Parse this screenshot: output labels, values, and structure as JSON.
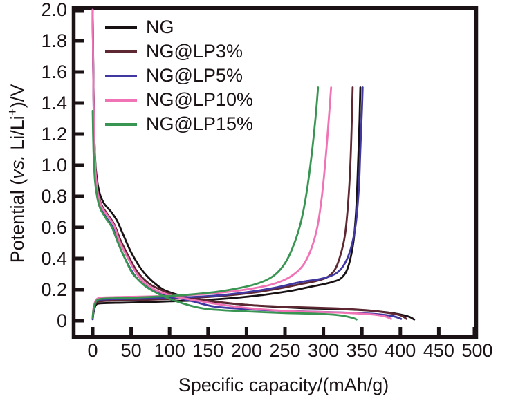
{
  "chart_data": {
    "type": "line",
    "title": "",
    "xlabel": "Specific capacity/(mAh/g)",
    "ylabel": "Potential (vs. Li/Li+)/V",
    "ylabel_parts": {
      "p1": "Potential (",
      "p2": "vs.",
      "p3": " Li/Li",
      "sup": "+",
      "p4": ")/V"
    },
    "xlim": [
      0,
      500
    ],
    "ylim": [
      0,
      2.0
    ],
    "grid": false,
    "legend_position": "top-left-inside",
    "axis_color": "#1a1215",
    "background_color": "#ffffff",
    "x_ticks": [
      0,
      50,
      100,
      150,
      200,
      250,
      300,
      350,
      400,
      450,
      500
    ],
    "x_tick_labels": [
      "0",
      "50",
      "100",
      "150",
      "200",
      "250",
      "300",
      "350",
      "400",
      "450",
      "500"
    ],
    "y_ticks": [
      0,
      0.2,
      0.4,
      0.6,
      0.8,
      1.0,
      1.2,
      1.4,
      1.6,
      1.8,
      2.0
    ],
    "y_tick_labels": [
      "0",
      "0.2",
      "0.4",
      "0.6",
      "0.8",
      "1.0",
      "1.2",
      "1.4",
      "1.6",
      "1.8",
      "2.0"
    ],
    "series": [
      {
        "name": "NG",
        "color": "#181114",
        "discharge_capacity_mAh_g": 418,
        "charge_capacity_mAh_g": 348,
        "discharge": [
          [
            0,
            2.0
          ],
          [
            1,
            1.5
          ],
          [
            2,
            1.2
          ],
          [
            4,
            0.98
          ],
          [
            8,
            0.84
          ],
          [
            14,
            0.76
          ],
          [
            24,
            0.7
          ],
          [
            32,
            0.64
          ],
          [
            40,
            0.55
          ],
          [
            50,
            0.44
          ],
          [
            62,
            0.34
          ],
          [
            72,
            0.28
          ],
          [
            82,
            0.235
          ],
          [
            92,
            0.2
          ],
          [
            105,
            0.175
          ],
          [
            120,
            0.155
          ],
          [
            140,
            0.135
          ],
          [
            170,
            0.115
          ],
          [
            220,
            0.095
          ],
          [
            270,
            0.082
          ],
          [
            320,
            0.075
          ],
          [
            360,
            0.065
          ],
          [
            385,
            0.052
          ],
          [
            400,
            0.04
          ],
          [
            412,
            0.025
          ],
          [
            418,
            0.008
          ]
        ],
        "charge": [
          [
            0,
            0.01
          ],
          [
            1,
            0.05
          ],
          [
            4,
            0.1
          ],
          [
            10,
            0.112
          ],
          [
            30,
            0.115
          ],
          [
            60,
            0.118
          ],
          [
            100,
            0.125
          ],
          [
            140,
            0.132
          ],
          [
            180,
            0.145
          ],
          [
            220,
            0.165
          ],
          [
            255,
            0.19
          ],
          [
            280,
            0.215
          ],
          [
            300,
            0.235
          ],
          [
            312,
            0.25
          ],
          [
            322,
            0.27
          ],
          [
            330,
            0.32
          ],
          [
            336,
            0.42
          ],
          [
            340,
            0.55
          ],
          [
            343,
            0.75
          ],
          [
            345,
            1.0
          ],
          [
            347,
            1.3
          ],
          [
            348,
            1.5
          ]
        ]
      },
      {
        "name": "NG@LP3%",
        "color": "#5e2832",
        "discharge_capacity_mAh_g": 408,
        "charge_capacity_mAh_g": 338,
        "discharge": [
          [
            0,
            2.0
          ],
          [
            1,
            1.5
          ],
          [
            2,
            1.2
          ],
          [
            4,
            0.95
          ],
          [
            7,
            0.82
          ],
          [
            12,
            0.74
          ],
          [
            20,
            0.68
          ],
          [
            28,
            0.62
          ],
          [
            36,
            0.52
          ],
          [
            46,
            0.42
          ],
          [
            56,
            0.33
          ],
          [
            66,
            0.27
          ],
          [
            76,
            0.23
          ],
          [
            88,
            0.2
          ],
          [
            100,
            0.175
          ],
          [
            115,
            0.155
          ],
          [
            135,
            0.14
          ],
          [
            165,
            0.12
          ],
          [
            205,
            0.1
          ],
          [
            260,
            0.088
          ],
          [
            315,
            0.08
          ],
          [
            355,
            0.068
          ],
          [
            385,
            0.05
          ],
          [
            400,
            0.035
          ],
          [
            408,
            0.012
          ]
        ],
        "charge": [
          [
            0,
            0.01
          ],
          [
            1,
            0.06
          ],
          [
            4,
            0.11
          ],
          [
            10,
            0.125
          ],
          [
            30,
            0.13
          ],
          [
            60,
            0.133
          ],
          [
            100,
            0.14
          ],
          [
            140,
            0.15
          ],
          [
            180,
            0.165
          ],
          [
            215,
            0.185
          ],
          [
            245,
            0.21
          ],
          [
            270,
            0.235
          ],
          [
            290,
            0.255
          ],
          [
            305,
            0.28
          ],
          [
            315,
            0.33
          ],
          [
            322,
            0.42
          ],
          [
            328,
            0.55
          ],
          [
            332,
            0.75
          ],
          [
            335,
            1.0
          ],
          [
            337,
            1.3
          ],
          [
            338,
            1.5
          ]
        ]
      },
      {
        "name": "NG@LP5%",
        "color": "#4038a0",
        "discharge_capacity_mAh_g": 401,
        "charge_capacity_mAh_g": 351,
        "discharge": [
          [
            0,
            2.0
          ],
          [
            1,
            1.45
          ],
          [
            2,
            1.15
          ],
          [
            4,
            0.92
          ],
          [
            7,
            0.8
          ],
          [
            11,
            0.72
          ],
          [
            18,
            0.66
          ],
          [
            26,
            0.6
          ],
          [
            33,
            0.5
          ],
          [
            42,
            0.4
          ],
          [
            52,
            0.31
          ],
          [
            60,
            0.26
          ],
          [
            70,
            0.22
          ],
          [
            80,
            0.19
          ],
          [
            92,
            0.17
          ],
          [
            108,
            0.15
          ],
          [
            130,
            0.125
          ],
          [
            160,
            0.09
          ],
          [
            210,
            0.072
          ],
          [
            260,
            0.062
          ],
          [
            310,
            0.055
          ],
          [
            350,
            0.048
          ],
          [
            375,
            0.04
          ],
          [
            392,
            0.028
          ],
          [
            401,
            0.012
          ]
        ],
        "charge": [
          [
            0,
            0.01
          ],
          [
            1,
            0.06
          ],
          [
            4,
            0.12
          ],
          [
            10,
            0.135
          ],
          [
            30,
            0.14
          ],
          [
            60,
            0.142
          ],
          [
            100,
            0.148
          ],
          [
            140,
            0.155
          ],
          [
            175,
            0.168
          ],
          [
            210,
            0.19
          ],
          [
            240,
            0.215
          ],
          [
            262,
            0.24
          ],
          [
            278,
            0.255
          ],
          [
            292,
            0.265
          ],
          [
            305,
            0.28
          ],
          [
            318,
            0.31
          ],
          [
            328,
            0.37
          ],
          [
            336,
            0.47
          ],
          [
            342,
            0.62
          ],
          [
            346,
            0.85
          ],
          [
            348,
            1.1
          ],
          [
            350,
            1.35
          ],
          [
            351,
            1.5
          ]
        ]
      },
      {
        "name": "NG@LP10%",
        "color": "#f073b5",
        "discharge_capacity_mAh_g": 388,
        "charge_capacity_mAh_g": 310,
        "discharge": [
          [
            0,
            2.0
          ],
          [
            1,
            1.45
          ],
          [
            2,
            1.18
          ],
          [
            4,
            0.94
          ],
          [
            7,
            0.81
          ],
          [
            12,
            0.73
          ],
          [
            20,
            0.67
          ],
          [
            28,
            0.61
          ],
          [
            35,
            0.51
          ],
          [
            45,
            0.41
          ],
          [
            55,
            0.32
          ],
          [
            64,
            0.26
          ],
          [
            74,
            0.22
          ],
          [
            85,
            0.19
          ],
          [
            97,
            0.17
          ],
          [
            112,
            0.15
          ],
          [
            135,
            0.13
          ],
          [
            165,
            0.105
          ],
          [
            205,
            0.08
          ],
          [
            255,
            0.062
          ],
          [
            305,
            0.055
          ],
          [
            340,
            0.048
          ],
          [
            365,
            0.04
          ],
          [
            380,
            0.028
          ],
          [
            388,
            0.012
          ]
        ],
        "charge": [
          [
            0,
            0.02
          ],
          [
            1,
            0.08
          ],
          [
            4,
            0.13
          ],
          [
            10,
            0.148
          ],
          [
            30,
            0.152
          ],
          [
            60,
            0.155
          ],
          [
            100,
            0.16
          ],
          [
            140,
            0.17
          ],
          [
            175,
            0.185
          ],
          [
            205,
            0.205
          ],
          [
            230,
            0.23
          ],
          [
            248,
            0.26
          ],
          [
            262,
            0.3
          ],
          [
            274,
            0.36
          ],
          [
            284,
            0.46
          ],
          [
            292,
            0.6
          ],
          [
            298,
            0.8
          ],
          [
            303,
            1.05
          ],
          [
            307,
            1.3
          ],
          [
            310,
            1.5
          ]
        ]
      },
      {
        "name": "NG@LP15%",
        "color": "#399552",
        "discharge_capacity_mAh_g": 343,
        "charge_capacity_mAh_g": 293,
        "discharge": [
          [
            0,
            1.35
          ],
          [
            1,
            1.1
          ],
          [
            3,
            0.9
          ],
          [
            6,
            0.79
          ],
          [
            10,
            0.72
          ],
          [
            17,
            0.66
          ],
          [
            25,
            0.6
          ],
          [
            33,
            0.5
          ],
          [
            42,
            0.4
          ],
          [
            51,
            0.31
          ],
          [
            60,
            0.26
          ],
          [
            69,
            0.22
          ],
          [
            79,
            0.19
          ],
          [
            91,
            0.16
          ],
          [
            106,
            0.13
          ],
          [
            125,
            0.1
          ],
          [
            150,
            0.075
          ],
          [
            200,
            0.06
          ],
          [
            250,
            0.05
          ],
          [
            290,
            0.045
          ],
          [
            315,
            0.038
          ],
          [
            330,
            0.028
          ],
          [
            340,
            0.015
          ],
          [
            343,
            0.008
          ]
        ],
        "charge": [
          [
            0,
            0.02
          ],
          [
            1,
            0.07
          ],
          [
            4,
            0.12
          ],
          [
            10,
            0.14
          ],
          [
            30,
            0.145
          ],
          [
            60,
            0.15
          ],
          [
            95,
            0.158
          ],
          [
            130,
            0.17
          ],
          [
            160,
            0.185
          ],
          [
            185,
            0.205
          ],
          [
            208,
            0.23
          ],
          [
            225,
            0.26
          ],
          [
            238,
            0.3
          ],
          [
            250,
            0.37
          ],
          [
            260,
            0.47
          ],
          [
            270,
            0.62
          ],
          [
            278,
            0.82
          ],
          [
            285,
            1.08
          ],
          [
            290,
            1.32
          ],
          [
            293,
            1.5
          ]
        ]
      }
    ]
  }
}
